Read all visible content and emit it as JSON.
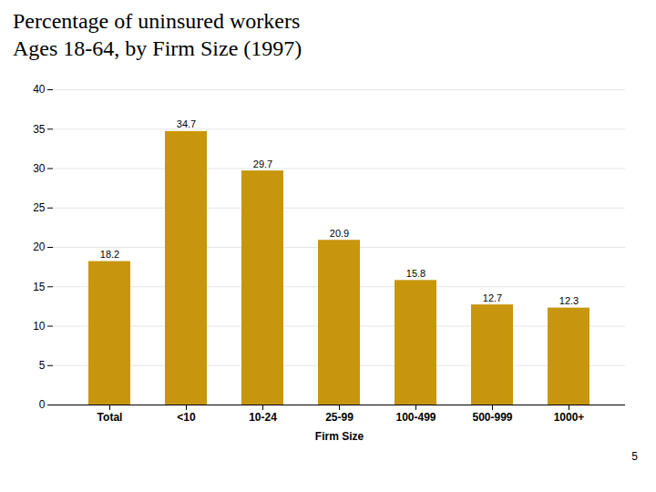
{
  "chart_data": {
    "type": "bar",
    "title": "Percentage of uninsured workers",
    "subtitle": "Ages 18-64, by Firm Size (1997)",
    "xlabel": "Firm Size",
    "categories": [
      "Total",
      "<10",
      "10-24",
      "25-99",
      "100-499",
      "500-999",
      "1000+"
    ],
    "values": [
      18.2,
      34.7,
      29.7,
      20.9,
      15.8,
      12.7,
      12.3
    ],
    "color": "#C8960C",
    "ylim": [
      0,
      40
    ],
    "yticks": [
      0,
      5,
      10,
      15,
      20,
      25,
      30,
      35,
      40
    ],
    "grid": true,
    "data_labels": true,
    "annotations": [
      "5"
    ]
  }
}
